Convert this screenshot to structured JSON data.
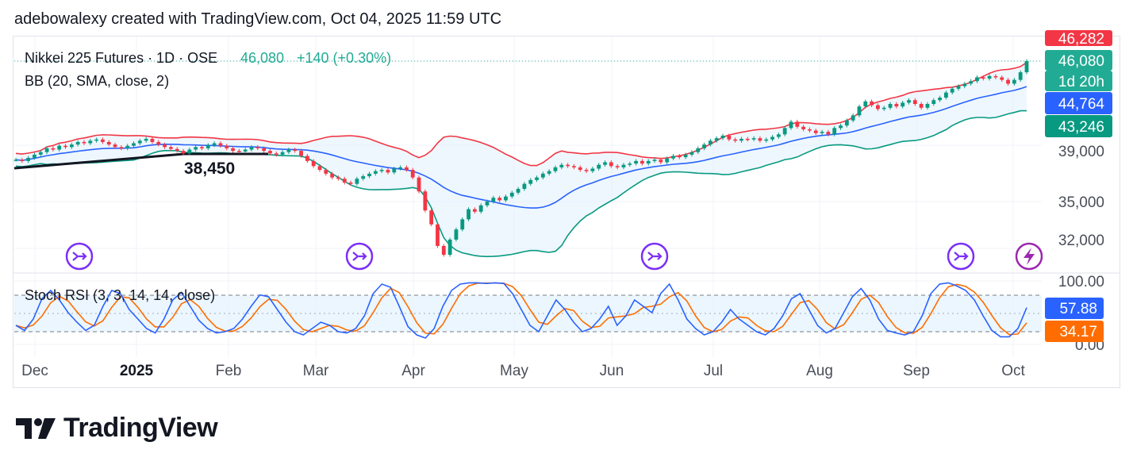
{
  "header": {
    "attribution": "adebowalexy created with TradingView.com, Oct 04, 2025 11:59 UTC"
  },
  "legend": {
    "symbol": "Nikkei 225 Futures · 1D · OSE",
    "price": "46,080",
    "change": "+140 (+0.30%)",
    "indicator": "BB (20, SMA, close, 2)",
    "oscillator": "Stoch RSI (3, 3, 14, 14, close)"
  },
  "annotation": {
    "text": "38,450"
  },
  "price_axis": {
    "ticks": [
      "39,000",
      "35,000",
      "32,000"
    ],
    "badges": [
      {
        "name": "bb-upper",
        "text": "46,282",
        "color": "#f23645"
      },
      {
        "name": "last-price",
        "text": "46,080",
        "color": "#22ab94"
      },
      {
        "name": "countdown",
        "text": "1d 20h",
        "color": "#22ab94"
      },
      {
        "name": "bb-basis",
        "text": "44,764",
        "color": "#2962ff"
      },
      {
        "name": "bb-lower",
        "text": "43,246",
        "color": "#089981"
      }
    ]
  },
  "rsi_axis": {
    "ticks": [
      "100.00",
      "0.00"
    ],
    "badges": [
      {
        "name": "stoch-k",
        "text": "57.88",
        "color": "#2962ff"
      },
      {
        "name": "stoch-d",
        "text": "34.17",
        "color": "#ff6d00"
      }
    ]
  },
  "time_axis": [
    "Dec",
    "2025",
    "Feb",
    "Mar",
    "Apr",
    "May",
    "Jun",
    "Jul",
    "Aug",
    "Sep",
    "Oct"
  ],
  "footer": {
    "brand": "TradingView"
  },
  "chart_data": {
    "type": "candlestick",
    "symbol": "Nikkei 225 Futures",
    "interval": "1D",
    "exchange": "OSE",
    "last": 46080,
    "change": 140,
    "change_pct": 0.3,
    "bollinger": {
      "upper": 46282,
      "basis": 44764,
      "lower": 43246
    },
    "stoch_rsi": {
      "k": 57.88,
      "d": 34.17,
      "bands": [
        80,
        50,
        20
      ],
      "range": [
        0,
        100
      ]
    },
    "price_ticks": [
      39000,
      35000,
      32000
    ],
    "months": [
      "Dec",
      "2025",
      "Feb",
      "Mar",
      "Apr",
      "May",
      "Jun",
      "Jul",
      "Aug",
      "Sep",
      "Oct"
    ],
    "close_series": [
      38300,
      38200,
      38450,
      38700,
      38900,
      39200,
      39100,
      39400,
      39300,
      39500,
      39700,
      39600,
      39800,
      39900,
      39700,
      39500,
      39300,
      39200,
      39400,
      39600,
      39800,
      39950,
      39700,
      39500,
      39300,
      39150,
      39000,
      38800,
      39100,
      39300,
      39200,
      39450,
      39600,
      39400,
      39200,
      39000,
      38950,
      39100,
      39300,
      39200,
      39000,
      38800,
      38700,
      38900,
      39100,
      39000,
      38600,
      38200,
      37800,
      37500,
      37200,
      36900,
      36800,
      36500,
      36400,
      36800,
      37000,
      37200,
      37400,
      37500,
      37300,
      37600,
      37700,
      37500,
      36900,
      35800,
      34300,
      33200,
      31500,
      30800,
      32000,
      32800,
      33600,
      34400,
      34200,
      34700,
      35000,
      35300,
      35100,
      35400,
      35700,
      36000,
      36400,
      36700,
      36900,
      37200,
      37400,
      37700,
      37900,
      37800,
      37700,
      37500,
      37400,
      37600,
      37900,
      38100,
      37800,
      37700,
      37900,
      38000,
      38200,
      38000,
      38200,
      38300,
      38100,
      38400,
      38600,
      38500,
      38700,
      38900,
      39200,
      39500,
      39800,
      40000,
      40200,
      39900,
      39800,
      39950,
      39900,
      40000,
      39800,
      39900,
      40100,
      40300,
      40800,
      41300,
      40900,
      40700,
      40600,
      40400,
      40500,
      40300,
      40800,
      41000,
      41400,
      41800,
      42500,
      42900,
      42600,
      42300,
      42400,
      42700,
      42500,
      42800,
      43000,
      42700,
      42400,
      42700,
      43000,
      43200,
      43600,
      43900,
      44100,
      44300,
      44500,
      44800,
      44700,
      44900,
      44800,
      44600,
      44300,
      44600,
      45200,
      46080
    ],
    "k_series": [
      30,
      22,
      40,
      72,
      85,
      70,
      50,
      35,
      22,
      30,
      60,
      85,
      80,
      55,
      40,
      25,
      18,
      40,
      70,
      82,
      60,
      38,
      25,
      18,
      20,
      25,
      40,
      60,
      78,
      75,
      55,
      35,
      20,
      15,
      25,
      35,
      30,
      20,
      18,
      25,
      45,
      80,
      95,
      90,
      60,
      28,
      15,
      10,
      25,
      60,
      85,
      95,
      97,
      97,
      96,
      97,
      96,
      80,
      55,
      30,
      20,
      45,
      70,
      55,
      35,
      20,
      25,
      40,
      60,
      30,
      45,
      70,
      60,
      50,
      80,
      95,
      70,
      40,
      25,
      15,
      20,
      35,
      55,
      40,
      30,
      20,
      15,
      25,
      45,
      72,
      80,
      55,
      30,
      18,
      25,
      50,
      75,
      88,
      70,
      40,
      22,
      18,
      15,
      20,
      45,
      80,
      95,
      97,
      92,
      85,
      70,
      45,
      22,
      12,
      12,
      25,
      58
    ]
  }
}
